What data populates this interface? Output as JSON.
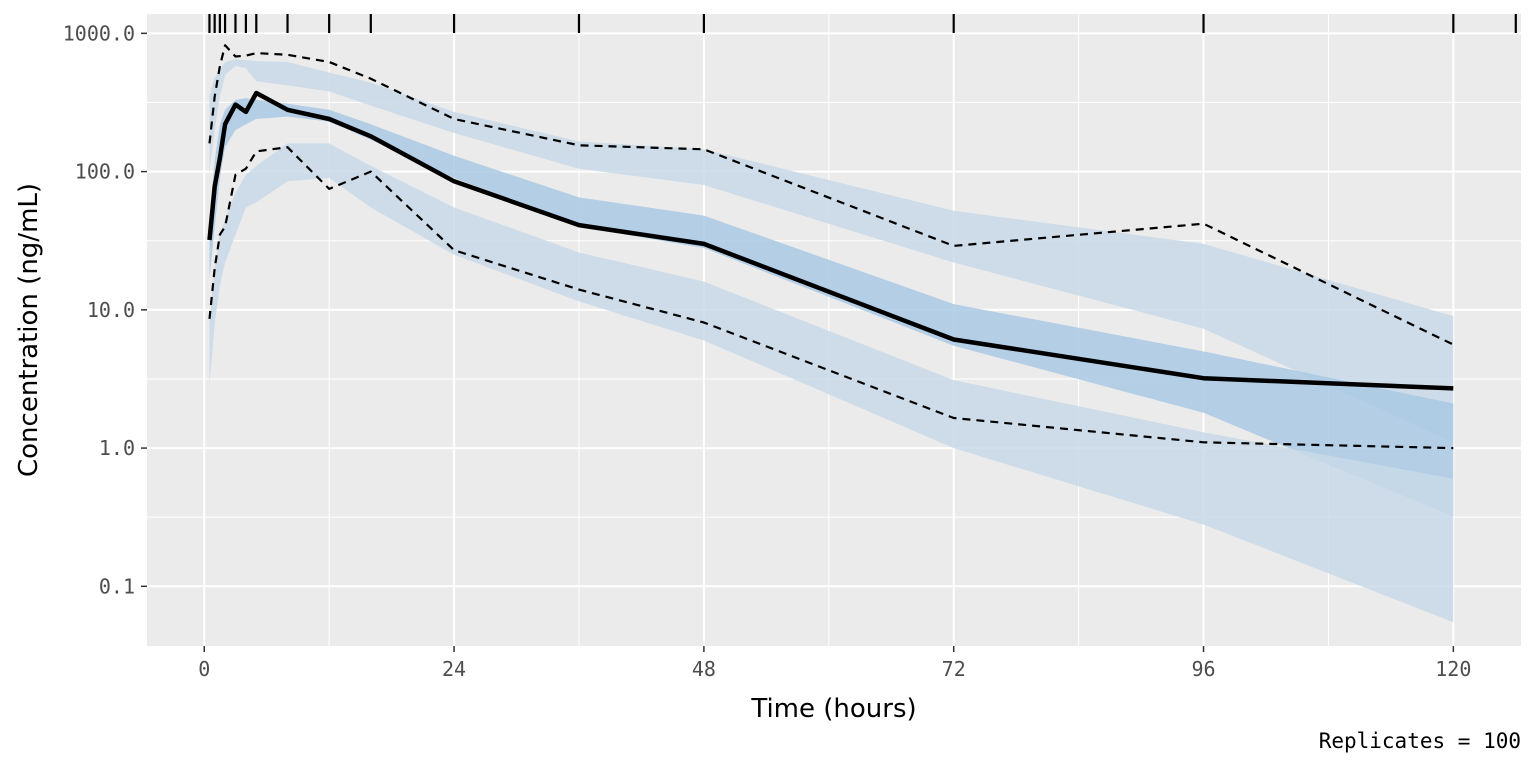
{
  "chart_data": {
    "type": "line",
    "xlabel": "Time (hours)",
    "ylabel": "Concentration (ng/mL)",
    "caption": "Replicates = 100",
    "x_scale": "linear",
    "y_scale": "log10",
    "xlim": [
      -5.5,
      126.5
    ],
    "ylim": [
      0.037,
      1380
    ],
    "x_ticks": [
      0,
      24,
      48,
      72,
      96,
      120
    ],
    "x_tick_labels": [
      "0",
      "24",
      "48",
      "72",
      "96",
      "120"
    ],
    "y_ticks": [
      0.1,
      1,
      10,
      100,
      1000
    ],
    "y_tick_labels": [
      "0.1",
      "1.0",
      "10.0",
      "100.0",
      "1000.0"
    ],
    "grid": true,
    "rug_x": [
      0.5,
      1,
      1.5,
      2,
      3,
      4,
      5,
      8,
      12,
      16,
      24,
      36,
      48,
      72,
      96,
      120,
      126
    ],
    "bands": [
      {
        "x": [
          0.5,
          1,
          1.5,
          2,
          3,
          4,
          5,
          8,
          12,
          16,
          24,
          36,
          48,
          72,
          96,
          120
        ],
        "lo": [
          100,
          200,
          350,
          500,
          580,
          560,
          450,
          420,
          380,
          300,
          190,
          105,
          80,
          22,
          7.3,
          1.1
        ],
        "hi": [
          350,
          480,
          550,
          620,
          650,
          640,
          630,
          620,
          520,
          440,
          270,
          165,
          145,
          52,
          30,
          9.0
        ],
        "color": "#c8d9e8"
      },
      {
        "x": [
          0.5,
          1,
          1.5,
          2,
          3,
          4,
          5,
          8,
          12,
          16,
          24,
          36,
          48,
          72,
          96,
          120
        ],
        "lo": [
          17,
          40,
          90,
          150,
          200,
          220,
          240,
          250,
          230,
          170,
          90,
          40,
          28,
          5.5,
          1.8,
          0.32
        ],
        "hi": [
          45,
          120,
          220,
          280,
          330,
          340,
          330,
          310,
          280,
          220,
          130,
          65,
          48,
          11,
          5.0,
          2.1
        ],
        "color": "#a9c9e4"
      },
      {
        "x": [
          0.5,
          1,
          1.5,
          2,
          3,
          4,
          5,
          8,
          12,
          16,
          24,
          36,
          48,
          72,
          96,
          120
        ],
        "lo": [
          2.9,
          8,
          15,
          22,
          35,
          55,
          60,
          85,
          90,
          55,
          25,
          11.5,
          6.0,
          1.0,
          0.28,
          0.055
        ],
        "hi": [
          8,
          20,
          35,
          45,
          70,
          95,
          110,
          160,
          160,
          110,
          55,
          26,
          16,
          3.1,
          1.3,
          0.6
        ],
        "color": "#c8d9e8"
      }
    ],
    "series": [
      {
        "style": "solid",
        "x": [
          0.5,
          1,
          1.5,
          2,
          3,
          4,
          5,
          8,
          12,
          16,
          24,
          36,
          48,
          72,
          96,
          120
        ],
        "values": [
          32,
          78,
          125,
          220,
          305,
          270,
          370,
          280,
          240,
          180,
          85,
          41,
          30,
          6.1,
          3.2,
          2.7
        ],
        "color": "#000000"
      },
      {
        "style": "dashed",
        "x": [
          0.5,
          1,
          1.5,
          2,
          3,
          4,
          5,
          8,
          12,
          16,
          24,
          36,
          48,
          72,
          96,
          120
        ],
        "values": [
          160,
          350,
          580,
          820,
          680,
          690,
          720,
          700,
          620,
          470,
          240,
          155,
          145,
          29,
          42,
          5.6
        ],
        "color": "#000000"
      },
      {
        "style": "dashed",
        "x": [
          0.5,
          1,
          1.5,
          2,
          3,
          4,
          5,
          8,
          12,
          16,
          24,
          36,
          48,
          72,
          96,
          120
        ],
        "values": [
          8.6,
          20,
          35,
          40,
          95,
          105,
          140,
          150,
          75,
          100,
          27,
          14,
          8.1,
          1.65,
          1.1,
          1.0
        ],
        "color": "#000000"
      }
    ],
    "colors": {
      "panel_background": "#ebebeb",
      "grid": "#ffffff",
      "outer_band": "#c8d9e8",
      "inner_band": "#a9c9e4",
      "line": "#000000"
    }
  }
}
